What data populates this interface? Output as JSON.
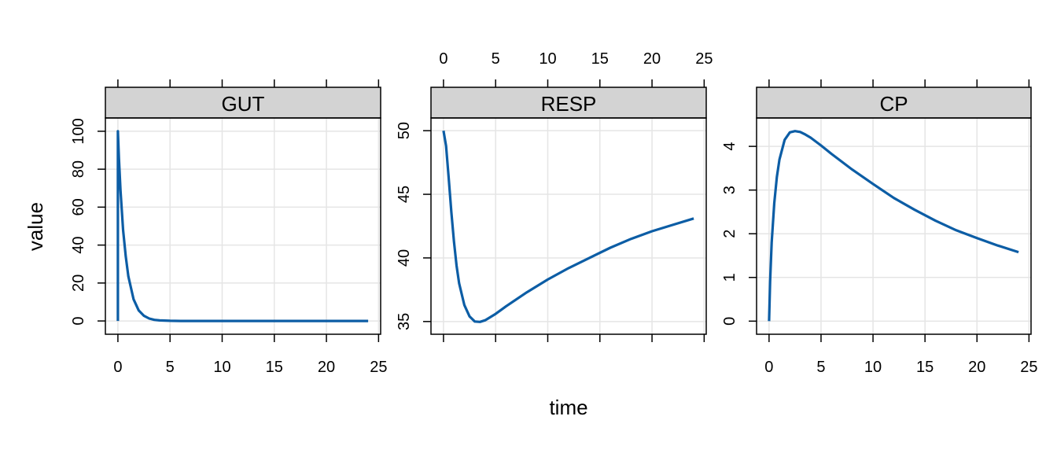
{
  "chart_data": {
    "type": "line",
    "xlabel": "time",
    "ylabel": "value",
    "line_color": "#0c5da5",
    "strip_color": "#d3d3d3",
    "grid_color": "#e5e5e5",
    "grid": true,
    "panels": [
      {
        "name": "GUT",
        "xlim": [
          -1.2,
          25.2
        ],
        "ylim": [
          -7,
          107
        ],
        "xticks": [
          0,
          5,
          10,
          15,
          20,
          25
        ],
        "yticks": [
          0,
          20,
          40,
          60,
          80,
          100
        ],
        "x": [
          0,
          0,
          0.1,
          0.25,
          0.5,
          0.75,
          1,
          1.5,
          2,
          2.5,
          3,
          3.5,
          4,
          5,
          6,
          8,
          10,
          15,
          20,
          24
        ],
        "y": [
          0,
          100,
          86,
          69,
          48,
          34,
          23.5,
          11.5,
          5.5,
          2.7,
          1.3,
          0.6,
          0.3,
          0.07,
          0.02,
          0,
          0,
          0,
          0,
          0
        ]
      },
      {
        "name": "RESP",
        "xlim": [
          -1.2,
          25.2
        ],
        "ylim": [
          34.0,
          51.0
        ],
        "xticks": [
          0,
          5,
          10,
          15,
          20,
          25
        ],
        "yticks": [
          35,
          40,
          45,
          50
        ],
        "x": [
          0,
          0.25,
          0.5,
          0.75,
          1,
          1.25,
          1.5,
          2,
          2.5,
          3,
          3.5,
          4,
          5,
          6,
          8,
          10,
          12,
          14,
          16,
          18,
          20,
          22,
          24
        ],
        "y": [
          50,
          48.8,
          46.3,
          43.6,
          41.3,
          39.4,
          38,
          36.3,
          35.4,
          35.0,
          34.97,
          35.1,
          35.6,
          36.2,
          37.3,
          38.3,
          39.2,
          40.0,
          40.8,
          41.5,
          42.1,
          42.6,
          43.1
        ]
      },
      {
        "name": "CP",
        "xlim": [
          -1.2,
          25.2
        ],
        "ylim": [
          -0.3,
          4.65
        ],
        "xticks": [
          0,
          5,
          10,
          15,
          20,
          25
        ],
        "yticks": [
          0,
          1,
          2,
          3,
          4
        ],
        "x": [
          0,
          0.1,
          0.25,
          0.5,
          0.75,
          1,
          1.5,
          2,
          2.5,
          3,
          3.5,
          4,
          5,
          6,
          8,
          10,
          12,
          14,
          16,
          18,
          20,
          22,
          24
        ],
        "y": [
          0,
          0.9,
          1.8,
          2.7,
          3.3,
          3.7,
          4.15,
          4.32,
          4.35,
          4.33,
          4.27,
          4.2,
          4.02,
          3.83,
          3.47,
          3.14,
          2.82,
          2.55,
          2.3,
          2.08,
          1.9,
          1.73,
          1.58
        ]
      }
    ]
  }
}
